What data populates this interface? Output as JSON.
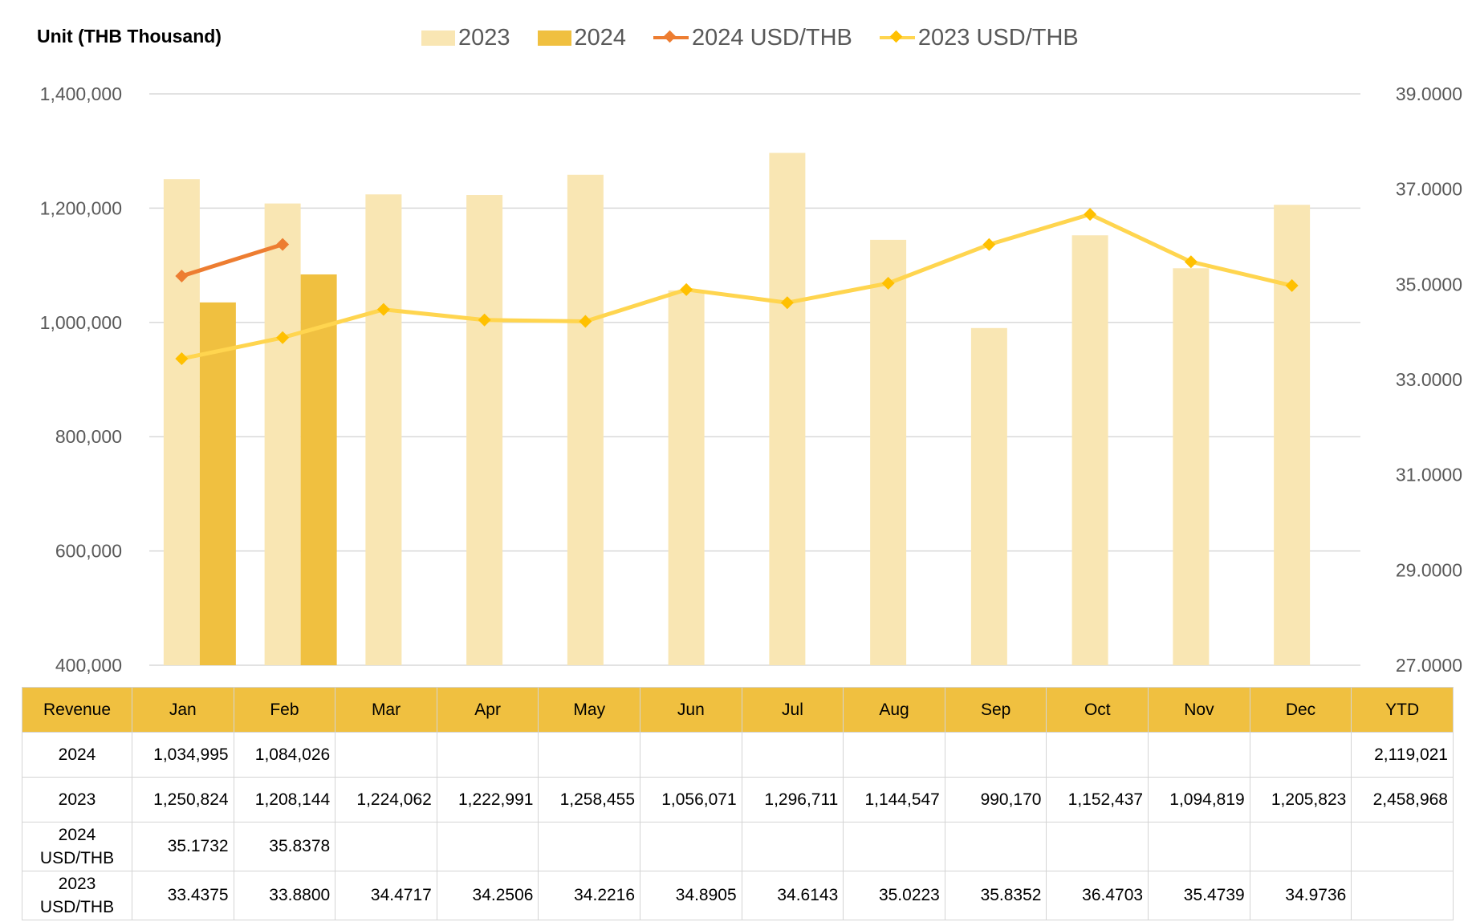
{
  "unit_label": "Unit (THB  Thousand)",
  "legend": [
    {
      "label": "2023",
      "kind": "bar",
      "color": "#f9e6b3"
    },
    {
      "label": "2024",
      "kind": "bar",
      "color": "#f0c040"
    },
    {
      "label": "2024 USD/THB",
      "kind": "line",
      "color": "#ed7d31"
    },
    {
      "label": "2023 USD/THB",
      "kind": "line",
      "color": "#ffd54f"
    }
  ],
  "chart_data": {
    "type": "bar",
    "categories": [
      "Jan",
      "Feb",
      "Mar",
      "Apr",
      "May",
      "Jun",
      "Jul",
      "Aug",
      "Sep",
      "Oct",
      "Nov",
      "Dec"
    ],
    "series": [
      {
        "name": "2023",
        "type": "bar",
        "axis": "left",
        "color": "#f9e6b3",
        "values": [
          1250824,
          1208144,
          1224062,
          1222991,
          1258455,
          1056071,
          1296711,
          1144547,
          990170,
          1152437,
          1094819,
          1205823
        ]
      },
      {
        "name": "2024",
        "type": "bar",
        "axis": "left",
        "color": "#f0c040",
        "values": [
          1034995,
          1084026,
          null,
          null,
          null,
          null,
          null,
          null,
          null,
          null,
          null,
          null
        ]
      },
      {
        "name": "2024 USD/THB",
        "type": "line",
        "axis": "right",
        "color": "#ed7d31",
        "values": [
          35.1732,
          35.8378,
          null,
          null,
          null,
          null,
          null,
          null,
          null,
          null,
          null,
          null
        ]
      },
      {
        "name": "2023 USD/THB",
        "type": "line",
        "axis": "right",
        "color": "#ffd54f",
        "values": [
          33.4375,
          33.88,
          34.4717,
          34.2506,
          34.2216,
          34.8905,
          34.6143,
          35.0223,
          35.8352,
          36.4703,
          35.4739,
          34.9736
        ]
      }
    ],
    "y_left": {
      "min": 400000,
      "max": 1400000,
      "ticks": [
        "400,000",
        "600,000",
        "800,000",
        "1,000,000",
        "1,200,000",
        "1,400,000"
      ]
    },
    "y_right": {
      "min": 27,
      "max": 39,
      "ticks": [
        "27.0000",
        "29.0000",
        "31.0000",
        "33.0000",
        "35.0000",
        "37.0000",
        "39.0000"
      ]
    },
    "grid": true,
    "legend_position": "top"
  },
  "table": {
    "headers": [
      "Revenue",
      "Jan",
      "Feb",
      "Mar",
      "Apr",
      "May",
      "Jun",
      "Jul",
      "Aug",
      "Sep",
      "Oct",
      "Nov",
      "Dec",
      "YTD"
    ],
    "rows": [
      {
        "label": "2024",
        "cells": [
          "1,034,995",
          "1,084,026",
          "",
          "",
          "",
          "",
          "",
          "",
          "",
          "",
          "",
          "",
          "2,119,021"
        ]
      },
      {
        "label": "2023",
        "cells": [
          "1,250,824",
          "1,208,144",
          "1,224,062",
          "1,222,991",
          "1,258,455",
          "1,056,071",
          "1,296,711",
          "1,144,547",
          "990,170",
          "1,152,437",
          "1,094,819",
          "1,205,823",
          "2,458,968"
        ]
      },
      {
        "label": "2024 USD/THB",
        "cells": [
          "35.1732",
          "35.8378",
          "",
          "",
          "",
          "",
          "",
          "",
          "",
          "",
          "",
          "",
          ""
        ]
      },
      {
        "label": "2023 USD/THB",
        "cells": [
          "33.4375",
          "33.8800",
          "34.4717",
          "34.2506",
          "34.2216",
          "34.8905",
          "34.6143",
          "35.0223",
          "35.8352",
          "36.4703",
          "35.4739",
          "34.9736",
          ""
        ]
      }
    ]
  }
}
